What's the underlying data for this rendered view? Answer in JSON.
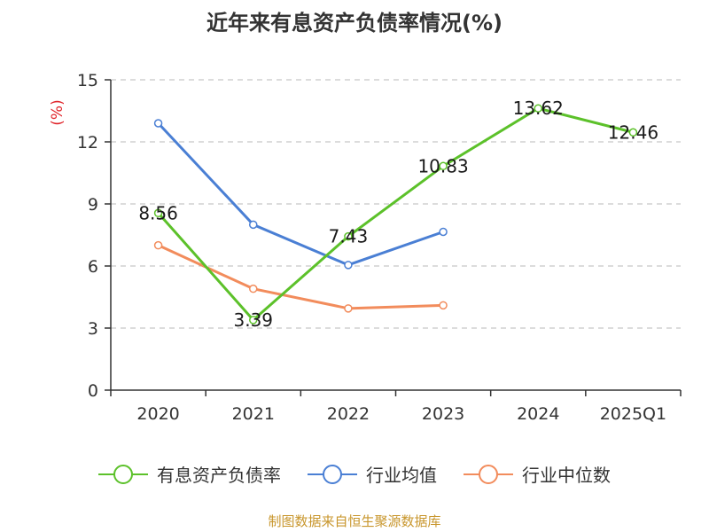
{
  "chart_data": {
    "type": "line",
    "title": "近年来有息资产负债率情况(%)",
    "ylabel": "(%)",
    "xlabel": "",
    "categories": [
      "2020",
      "2021",
      "2022",
      "2023",
      "2024",
      "2025Q1"
    ],
    "ylim": [
      0,
      15
    ],
    "yticks": [
      0,
      3,
      6,
      9,
      12,
      15
    ],
    "grid": true,
    "legend_position": "bottom",
    "series": [
      {
        "name": "有息资产负债率",
        "color": "#5cc12a",
        "values": [
          8.56,
          3.39,
          7.43,
          10.83,
          13.62,
          12.46
        ],
        "data_labels": [
          "8.56",
          "3.39",
          "7.43",
          "10.83",
          "13.62",
          "12.46"
        ]
      },
      {
        "name": "行业均值",
        "color": "#4a7fd4",
        "values": [
          12.9,
          8.0,
          6.05,
          7.65,
          null,
          null
        ]
      },
      {
        "name": "行业中位数",
        "color": "#f28c5c",
        "values": [
          7.0,
          4.9,
          3.95,
          4.1,
          null,
          null
        ]
      }
    ]
  },
  "source": "制图数据来自恒生聚源数据库"
}
